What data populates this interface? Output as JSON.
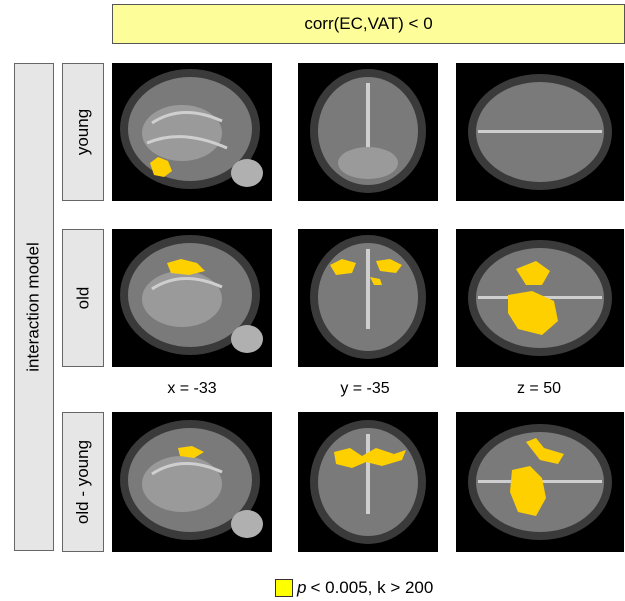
{
  "title": "corr(EC,VAT) < 0",
  "model_label": "interaction model",
  "rows": [
    {
      "label": "young"
    },
    {
      "label": "old"
    },
    {
      "label": "old - young"
    }
  ],
  "coords": {
    "x": "x = -33",
    "y": "y = -35",
    "z": "z = 50"
  },
  "legend": {
    "p_symbol": "p",
    "text": "< 0.005, k > 200",
    "swatch_color": "#ffff00"
  },
  "colors": {
    "title_bg": "#fdfd9a",
    "label_bg": "#e6e6e6",
    "activation": "#ffd000"
  }
}
